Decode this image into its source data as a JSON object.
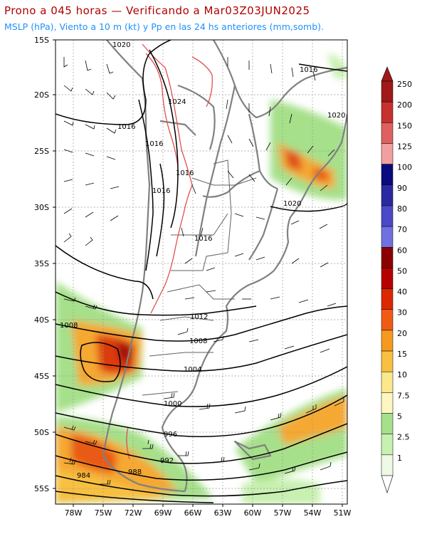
{
  "title": {
    "line1": "Prono a 045 horas — Verificando a Mar03Z03JUN2025",
    "line2": "MSLP (hPa), Viento a 10 m (kt) y Pp en las 24 hs anteriores (mm,somb)."
  },
  "colors": {
    "title1": "#b00000",
    "title2": "#1e90ff",
    "coast": "#808080",
    "isobar": "#000000",
    "high_terrain": "#e05050"
  },
  "map": {
    "lat_labels": [
      "15S",
      "20S",
      "25S",
      "30S",
      "35S",
      "40S",
      "45S",
      "50S",
      "55S"
    ],
    "lon_labels": [
      "78W",
      "75W",
      "72W",
      "69W",
      "66W",
      "63W",
      "60W",
      "57W",
      "54W",
      "51W"
    ]
  },
  "isobars": [
    {
      "value": "1020",
      "label": "1020"
    },
    {
      "value": "1016",
      "label": "1016"
    },
    {
      "value": "1024",
      "label": "1024"
    },
    {
      "value": "1016",
      "label": "1016"
    },
    {
      "value": "1016",
      "label": "1016"
    },
    {
      "value": "1016",
      "label": "1016"
    },
    {
      "value": "1016",
      "label": "1016"
    },
    {
      "value": "1020",
      "label": "1020"
    },
    {
      "value": "1016",
      "label": "1016"
    },
    {
      "value": "1020",
      "label": "1020"
    },
    {
      "value": "1012",
      "label": "1012"
    },
    {
      "value": "1008",
      "label": "1008"
    },
    {
      "value": "1008",
      "label": "1008"
    },
    {
      "value": "1004",
      "label": "1004"
    },
    {
      "value": "1000",
      "label": "1000"
    },
    {
      "value": "996",
      "label": "996"
    },
    {
      "value": "992",
      "label": "992"
    },
    {
      "value": "988",
      "label": "988"
    },
    {
      "value": "984",
      "label": "984"
    }
  ],
  "colorbar": {
    "levels": [
      "250",
      "200",
      "150",
      "125",
      "100",
      "90",
      "80",
      "70",
      "60",
      "50",
      "40",
      "30",
      "20",
      "15",
      "10",
      "7.5",
      "5",
      "2.5",
      "1"
    ],
    "colors": [
      "#a01818",
      "#c83030",
      "#e06060",
      "#f0a0a0",
      "#0a0a80",
      "#2a2aa0",
      "#4a4ac8",
      "#7070e0",
      "#8b0000",
      "#b40000",
      "#dc2800",
      "#f05a14",
      "#f59a1e",
      "#f8c040",
      "#fbe88a",
      "#fdf6c0",
      "#a6e08a",
      "#c8f0b0",
      "#eefae6"
    ]
  }
}
